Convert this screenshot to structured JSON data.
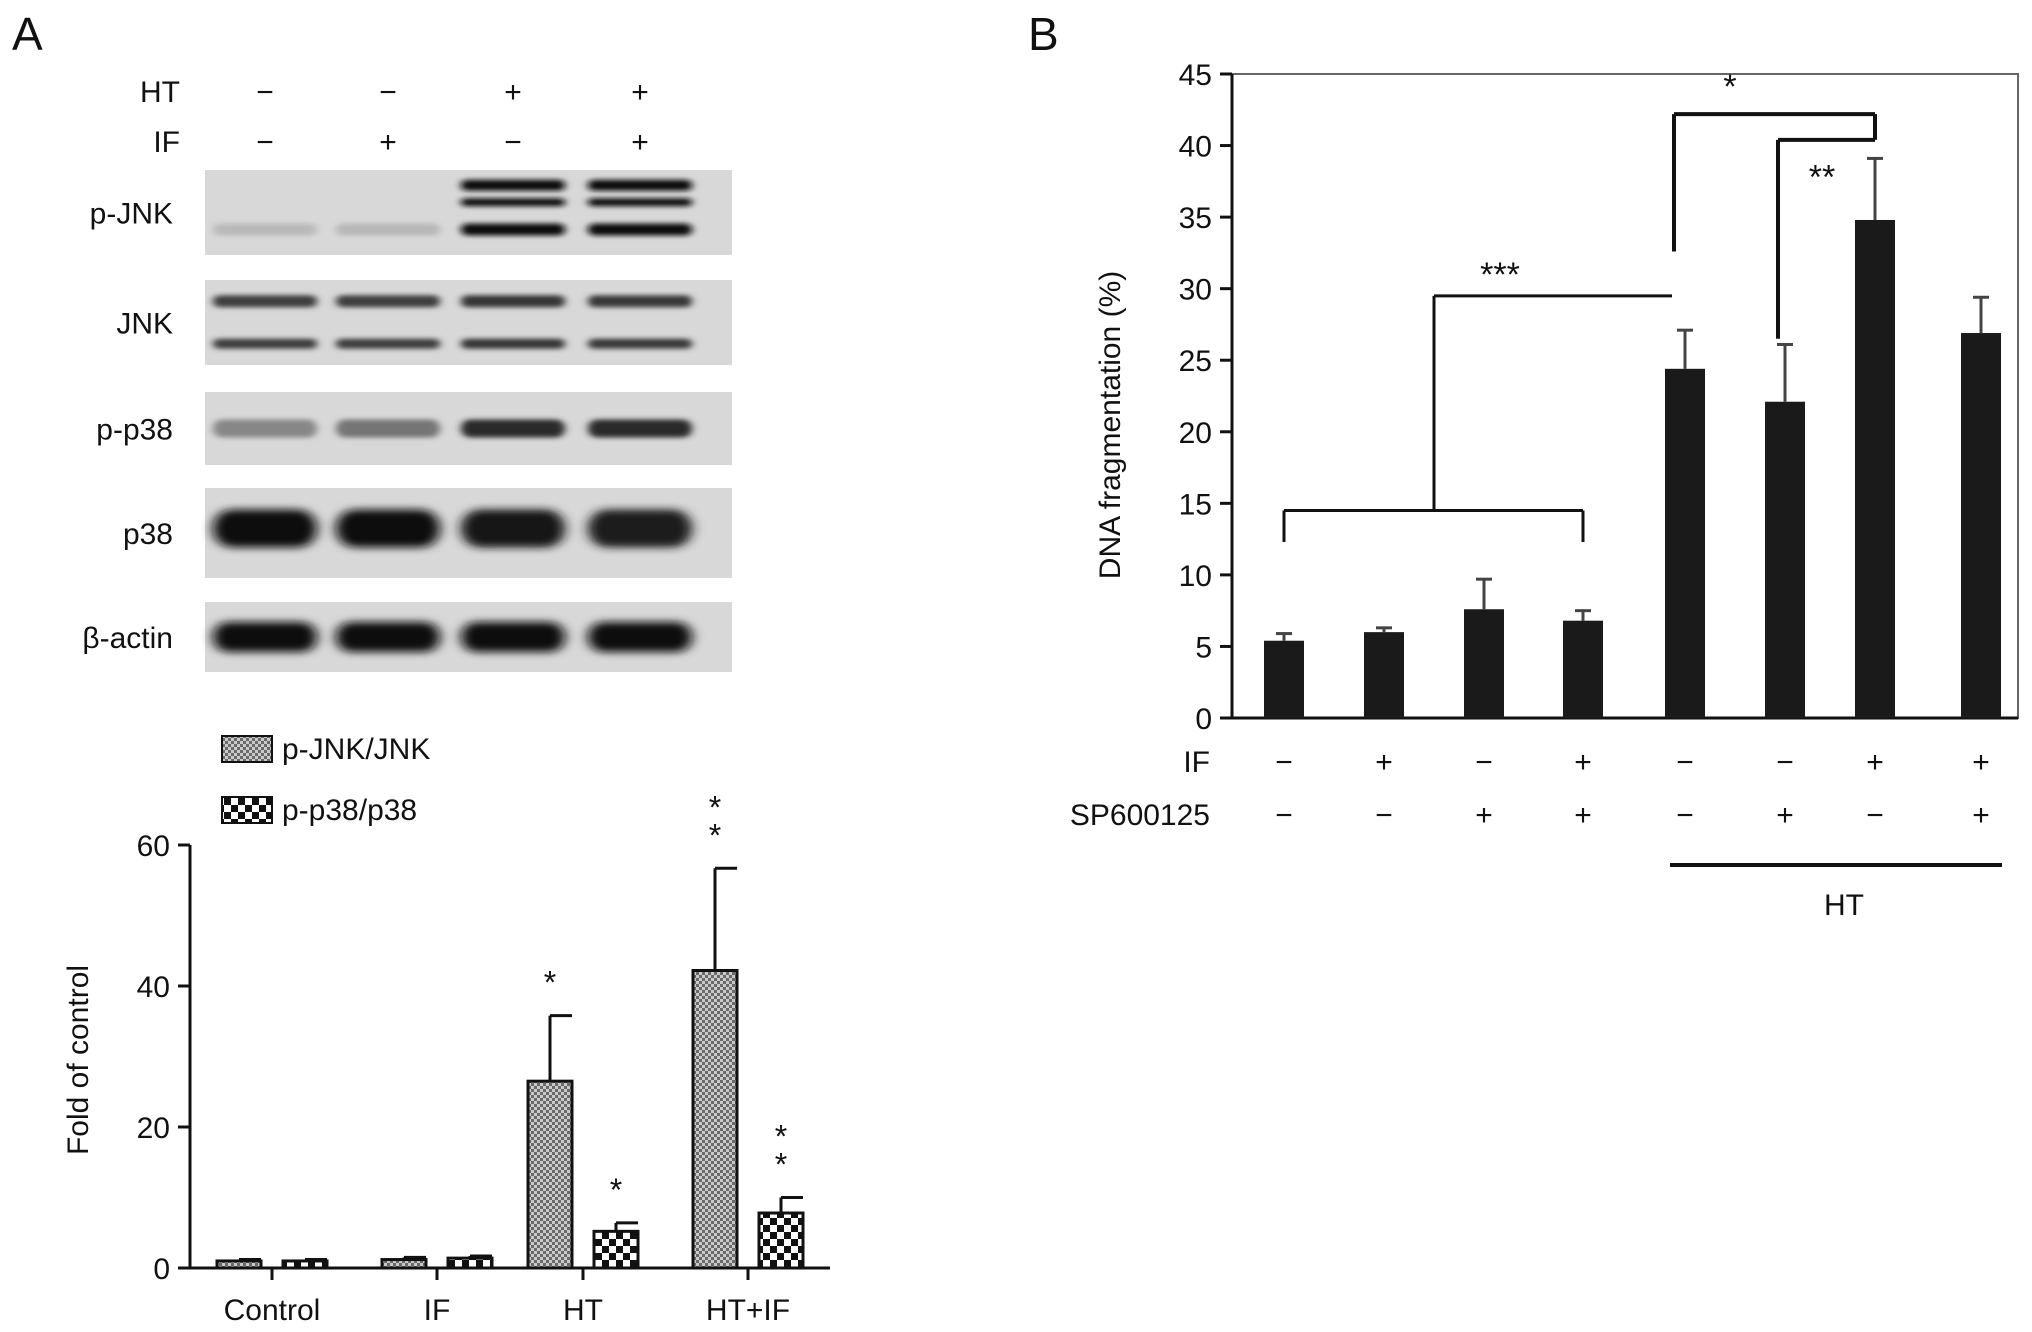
{
  "panels": {
    "a_label": "A",
    "b_label": "B"
  },
  "western_blot": {
    "treatment_rows": [
      {
        "label": "HT",
        "signs": [
          "−",
          "−",
          "+",
          "+"
        ]
      },
      {
        "label": "IF",
        "signs": [
          "−",
          "+",
          "−",
          "+"
        ]
      }
    ],
    "bands": [
      {
        "label": "p-JNK",
        "intensities": [
          0.08,
          0.09,
          1.0,
          1.0
        ]
      },
      {
        "label": "JNK",
        "intensities": [
          0.75,
          0.75,
          0.8,
          0.78
        ]
      },
      {
        "label": "p-p38",
        "intensities": [
          0.35,
          0.45,
          0.85,
          0.85
        ]
      },
      {
        "label": "p38",
        "intensities": [
          1.0,
          1.0,
          0.95,
          0.92
        ]
      },
      {
        "label": "β-actin",
        "intensities": [
          1.0,
          1.0,
          1.0,
          1.0
        ]
      }
    ]
  },
  "chart_data": [
    {
      "type": "bar",
      "panel": "A",
      "title": "",
      "xlabel": "",
      "ylabel": "Fold of control",
      "ylim": [
        0,
        60
      ],
      "yticks": [
        0,
        20,
        40,
        60
      ],
      "categories": [
        "Control",
        "IF",
        "HT",
        "HT+IF"
      ],
      "series": [
        {
          "name": "p-JNK/JNK",
          "pattern": "fine-crosshatch",
          "values": [
            1.0,
            1.2,
            26.5,
            42.2
          ],
          "errors": [
            0.2,
            0.3,
            9.3,
            14.5
          ],
          "significance": [
            "",
            "",
            "*",
            "**"
          ]
        },
        {
          "name": "p-p38/p38",
          "pattern": "coarse-checker",
          "values": [
            1.0,
            1.4,
            5.2,
            7.8
          ],
          "errors": [
            0.2,
            0.3,
            1.2,
            2.2
          ],
          "significance": [
            "",
            "",
            "*",
            "**"
          ]
        }
      ],
      "legend_position": "top-left",
      "grid": false
    },
    {
      "type": "bar",
      "panel": "B",
      "title": "",
      "xlabel": "",
      "ylabel": "DNA fragmentation (%)",
      "ylim": [
        0,
        45
      ],
      "yticks": [
        0,
        5,
        10,
        15,
        20,
        25,
        30,
        35,
        40,
        45
      ],
      "values": [
        5.4,
        6.0,
        7.6,
        6.8,
        24.4,
        22.1,
        34.8,
        26.9
      ],
      "errors": [
        0.5,
        0.3,
        2.1,
        0.7,
        2.7,
        4.0,
        4.3,
        2.5
      ],
      "condition_rows": [
        {
          "label": "IF",
          "signs": [
            "−",
            "+",
            "−",
            "+",
            "−",
            "−",
            "+",
            "+"
          ]
        },
        {
          "label": "SP600125",
          "signs": [
            "−",
            "−",
            "+",
            "+",
            "−",
            "+",
            "−",
            "+"
          ]
        }
      ],
      "group_label": "HT",
      "significance_brackets": [
        {
          "label": "***"
        },
        {
          "label": "*"
        },
        {
          "label": "**"
        }
      ],
      "color": "#1a1a1a",
      "grid": false
    }
  ]
}
